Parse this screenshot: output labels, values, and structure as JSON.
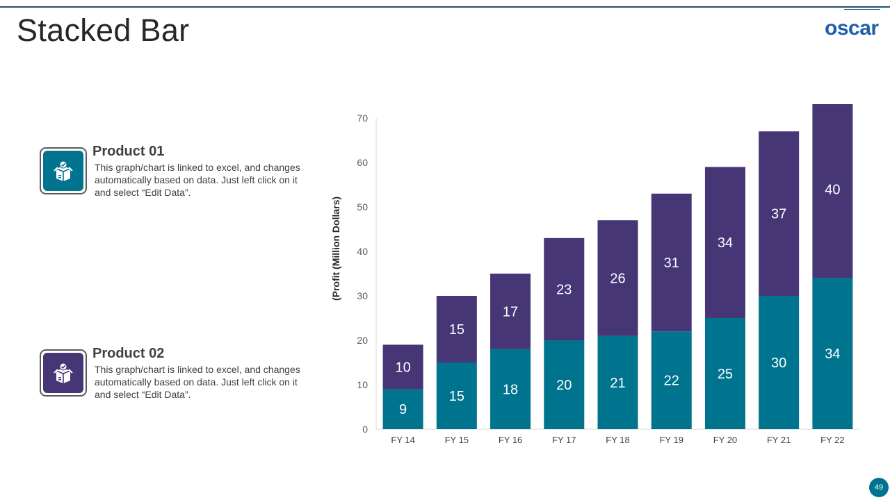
{
  "page": {
    "title": "Stacked Bar",
    "logo": "oscar",
    "page_number": "49"
  },
  "colors": {
    "product01": "#00738f",
    "product02": "#463676",
    "badge": "#00738f",
    "rule": "#1e4f6e"
  },
  "products": [
    {
      "title": "Product 01",
      "text": "This graph/chart is linked to excel, and changes automatically based on data. Just left click on it and select “Edit Data”.",
      "icon": "box-check-icon"
    },
    {
      "title": "Product 02",
      "text": "This graph/chart is linked to excel, and changes automatically based on data. Just left click on it and select “Edit Data”.",
      "icon": "box-check-icon"
    }
  ],
  "chart_data": {
    "type": "bar",
    "stacked": true,
    "title": "",
    "xlabel": "",
    "ylabel": "(Profit  (Million Dollars)",
    "categories": [
      "FY 14",
      "FY 15",
      "FY 16",
      "FY 17",
      "FY 18",
      "FY 19",
      "FY 20",
      "FY 21",
      "FY 22"
    ],
    "series": [
      {
        "name": "Product 01",
        "values": [
          9,
          15,
          18,
          20,
          21,
          22,
          25,
          30,
          34
        ]
      },
      {
        "name": "Product 02",
        "values": [
          10,
          15,
          17,
          23,
          26,
          31,
          34,
          37,
          40
        ]
      }
    ],
    "ylim": [
      0,
      70
    ],
    "yticks": [
      0,
      10,
      20,
      30,
      40,
      50,
      60,
      70
    ],
    "grid": false
  }
}
